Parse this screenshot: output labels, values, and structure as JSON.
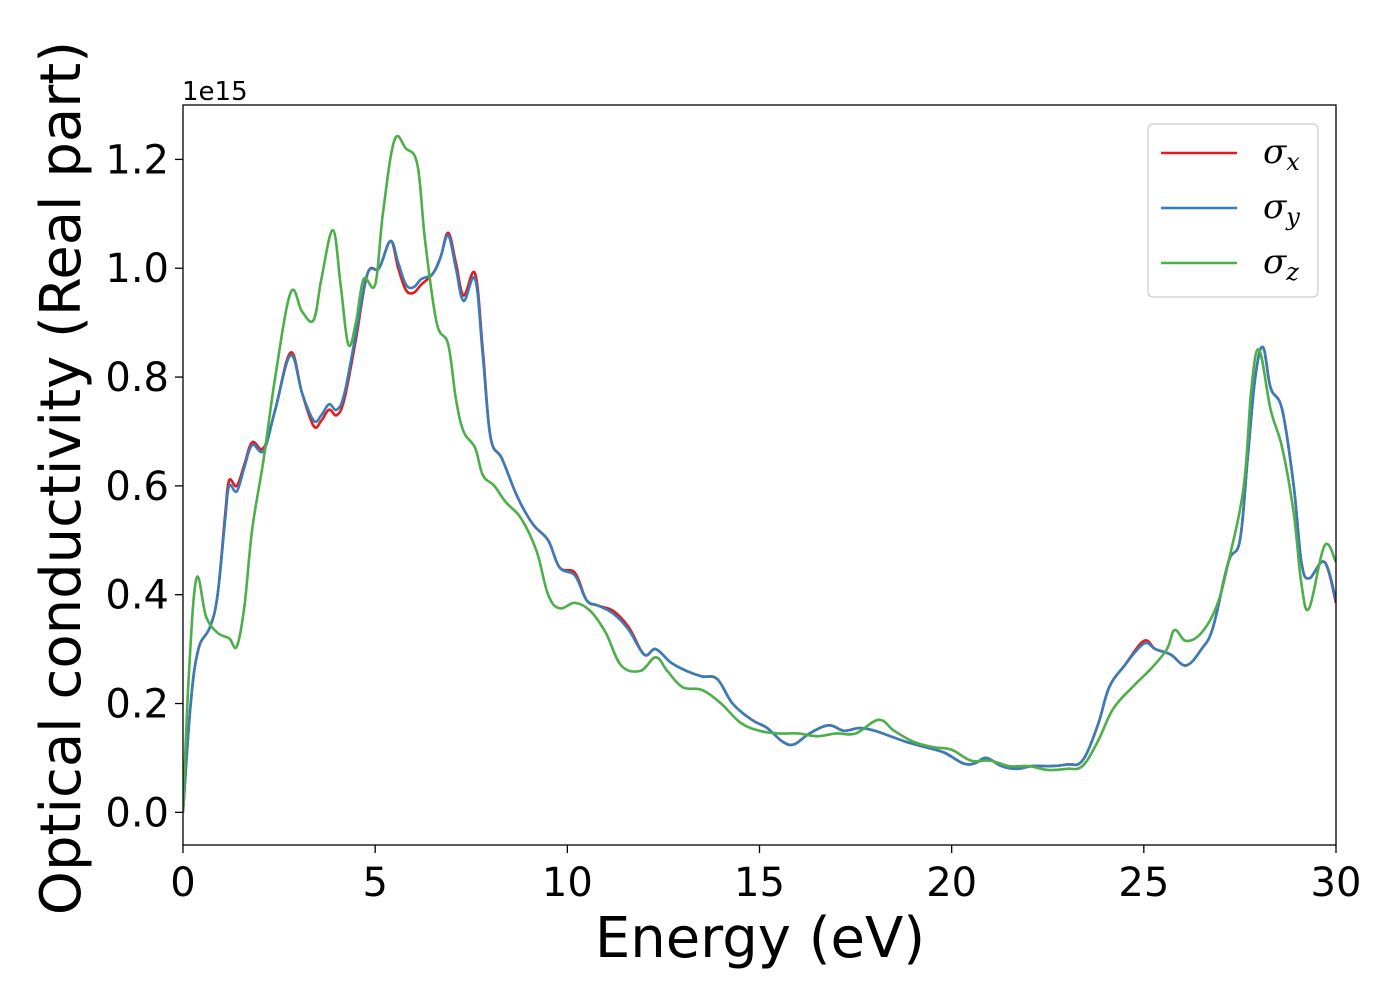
{
  "chart_data": {
    "type": "line",
    "xlabel": "Energy (eV)",
    "ylabel": "Optical conductivity (Real part)",
    "y_offset_label": "1e15",
    "xlim": [
      0,
      30
    ],
    "ylim": [
      -0.06,
      1.3
    ],
    "xticks": [
      0,
      5,
      10,
      15,
      20,
      25,
      30
    ],
    "yticks": [
      0.0,
      0.2,
      0.4,
      0.6,
      0.8,
      1.0,
      1.2
    ],
    "grid": false,
    "legend_position": "top-right",
    "series": [
      {
        "name": "σx",
        "symbol": "σ",
        "subscript": "x",
        "color": "#e41a1c",
        "points": [
          [
            0,
            0
          ],
          [
            0.2,
            0.2
          ],
          [
            0.4,
            0.3
          ],
          [
            0.7,
            0.34
          ],
          [
            0.9,
            0.4
          ],
          [
            1.1,
            0.55
          ],
          [
            1.2,
            0.61
          ],
          [
            1.4,
            0.6
          ],
          [
            1.6,
            0.64
          ],
          [
            1.8,
            0.68
          ],
          [
            2.1,
            0.67
          ],
          [
            2.4,
            0.74
          ],
          [
            2.8,
            0.845
          ],
          [
            3.1,
            0.77
          ],
          [
            3.4,
            0.71
          ],
          [
            3.6,
            0.72
          ],
          [
            3.8,
            0.74
          ],
          [
            4.0,
            0.73
          ],
          [
            4.2,
            0.76
          ],
          [
            4.5,
            0.87
          ],
          [
            4.8,
            0.99
          ],
          [
            5.1,
            1.0
          ],
          [
            5.4,
            1.05
          ],
          [
            5.6,
            1.0
          ],
          [
            5.8,
            0.96
          ],
          [
            6.0,
            0.955
          ],
          [
            6.2,
            0.97
          ],
          [
            6.5,
            0.99
          ],
          [
            6.7,
            1.02
          ],
          [
            6.9,
            1.065
          ],
          [
            7.1,
            1.01
          ],
          [
            7.3,
            0.95
          ],
          [
            7.6,
            0.99
          ],
          [
            7.8,
            0.85
          ],
          [
            8.0,
            0.69
          ],
          [
            8.3,
            0.65
          ],
          [
            8.7,
            0.58
          ],
          [
            9.1,
            0.53
          ],
          [
            9.5,
            0.5
          ],
          [
            9.8,
            0.45
          ],
          [
            10.2,
            0.44
          ],
          [
            10.5,
            0.39
          ],
          [
            10.8,
            0.38
          ],
          [
            11.2,
            0.37
          ],
          [
            11.6,
            0.34
          ],
          [
            12.0,
            0.29
          ],
          [
            12.3,
            0.3
          ],
          [
            12.7,
            0.275
          ],
          [
            13.1,
            0.26
          ],
          [
            13.5,
            0.25
          ],
          [
            13.9,
            0.245
          ],
          [
            14.3,
            0.2
          ],
          [
            14.8,
            0.17
          ],
          [
            15.2,
            0.155
          ],
          [
            15.6,
            0.13
          ],
          [
            15.9,
            0.125
          ],
          [
            16.3,
            0.145
          ],
          [
            16.8,
            0.16
          ],
          [
            17.2,
            0.15
          ],
          [
            17.6,
            0.155
          ],
          [
            18.0,
            0.15
          ],
          [
            18.4,
            0.14
          ],
          [
            18.8,
            0.13
          ],
          [
            19.3,
            0.12
          ],
          [
            19.8,
            0.11
          ],
          [
            20.3,
            0.09
          ],
          [
            20.6,
            0.09
          ],
          [
            20.9,
            0.1
          ],
          [
            21.3,
            0.085
          ],
          [
            21.7,
            0.08
          ],
          [
            22.1,
            0.085
          ],
          [
            22.6,
            0.085
          ],
          [
            23.0,
            0.088
          ],
          [
            23.4,
            0.095
          ],
          [
            23.8,
            0.16
          ],
          [
            24.1,
            0.23
          ],
          [
            24.5,
            0.27
          ],
          [
            25.0,
            0.315
          ],
          [
            25.3,
            0.3
          ],
          [
            25.7,
            0.29
          ],
          [
            26.1,
            0.27
          ],
          [
            26.5,
            0.3
          ],
          [
            26.8,
            0.34
          ],
          [
            27.2,
            0.46
          ],
          [
            27.5,
            0.5
          ],
          [
            27.7,
            0.65
          ],
          [
            27.9,
            0.8
          ],
          [
            28.1,
            0.855
          ],
          [
            28.3,
            0.78
          ],
          [
            28.6,
            0.74
          ],
          [
            28.9,
            0.6
          ],
          [
            29.1,
            0.46
          ],
          [
            29.3,
            0.43
          ],
          [
            29.7,
            0.46
          ],
          [
            30.0,
            0.385
          ]
        ]
      },
      {
        "name": "σy",
        "symbol": "σ",
        "subscript": "y",
        "color": "#377eb8",
        "points": [
          [
            0,
            0
          ],
          [
            0.2,
            0.2
          ],
          [
            0.4,
            0.3
          ],
          [
            0.7,
            0.34
          ],
          [
            0.9,
            0.4
          ],
          [
            1.1,
            0.54
          ],
          [
            1.2,
            0.6
          ],
          [
            1.4,
            0.59
          ],
          [
            1.6,
            0.635
          ],
          [
            1.8,
            0.675
          ],
          [
            2.1,
            0.665
          ],
          [
            2.4,
            0.74
          ],
          [
            2.8,
            0.84
          ],
          [
            3.1,
            0.77
          ],
          [
            3.4,
            0.72
          ],
          [
            3.6,
            0.73
          ],
          [
            3.8,
            0.75
          ],
          [
            4.0,
            0.74
          ],
          [
            4.2,
            0.77
          ],
          [
            4.5,
            0.88
          ],
          [
            4.8,
            0.99
          ],
          [
            5.1,
            1.0
          ],
          [
            5.4,
            1.05
          ],
          [
            5.6,
            1.01
          ],
          [
            5.8,
            0.97
          ],
          [
            6.0,
            0.965
          ],
          [
            6.2,
            0.98
          ],
          [
            6.5,
            0.99
          ],
          [
            6.7,
            1.02
          ],
          [
            6.9,
            1.06
          ],
          [
            7.1,
            1.0
          ],
          [
            7.3,
            0.94
          ],
          [
            7.6,
            0.98
          ],
          [
            7.8,
            0.84
          ],
          [
            8.0,
            0.69
          ],
          [
            8.3,
            0.65
          ],
          [
            8.7,
            0.58
          ],
          [
            9.1,
            0.53
          ],
          [
            9.5,
            0.5
          ],
          [
            9.8,
            0.45
          ],
          [
            10.2,
            0.435
          ],
          [
            10.5,
            0.39
          ],
          [
            10.8,
            0.38
          ],
          [
            11.2,
            0.365
          ],
          [
            11.6,
            0.335
          ],
          [
            12.0,
            0.29
          ],
          [
            12.3,
            0.3
          ],
          [
            12.7,
            0.275
          ],
          [
            13.1,
            0.26
          ],
          [
            13.5,
            0.25
          ],
          [
            13.9,
            0.245
          ],
          [
            14.3,
            0.2
          ],
          [
            14.8,
            0.17
          ],
          [
            15.2,
            0.155
          ],
          [
            15.6,
            0.13
          ],
          [
            15.9,
            0.125
          ],
          [
            16.3,
            0.145
          ],
          [
            16.8,
            0.16
          ],
          [
            17.2,
            0.15
          ],
          [
            17.6,
            0.155
          ],
          [
            18.0,
            0.15
          ],
          [
            18.4,
            0.14
          ],
          [
            18.8,
            0.13
          ],
          [
            19.3,
            0.12
          ],
          [
            19.8,
            0.11
          ],
          [
            20.3,
            0.09
          ],
          [
            20.6,
            0.09
          ],
          [
            20.9,
            0.1
          ],
          [
            21.3,
            0.085
          ],
          [
            21.7,
            0.08
          ],
          [
            22.1,
            0.085
          ],
          [
            22.6,
            0.085
          ],
          [
            23.0,
            0.088
          ],
          [
            23.4,
            0.095
          ],
          [
            23.8,
            0.16
          ],
          [
            24.1,
            0.23
          ],
          [
            24.5,
            0.27
          ],
          [
            25.0,
            0.31
          ],
          [
            25.3,
            0.3
          ],
          [
            25.7,
            0.29
          ],
          [
            26.1,
            0.27
          ],
          [
            26.5,
            0.3
          ],
          [
            26.8,
            0.34
          ],
          [
            27.2,
            0.46
          ],
          [
            27.5,
            0.5
          ],
          [
            27.7,
            0.65
          ],
          [
            27.9,
            0.8
          ],
          [
            28.1,
            0.855
          ],
          [
            28.3,
            0.78
          ],
          [
            28.6,
            0.74
          ],
          [
            28.9,
            0.6
          ],
          [
            29.1,
            0.46
          ],
          [
            29.3,
            0.43
          ],
          [
            29.7,
            0.46
          ],
          [
            30.0,
            0.39
          ]
        ]
      },
      {
        "name": "σz",
        "symbol": "σ",
        "subscript": "z",
        "color": "#4daf4a",
        "points": [
          [
            0,
            0
          ],
          [
            0.15,
            0.25
          ],
          [
            0.35,
            0.43
          ],
          [
            0.6,
            0.36
          ],
          [
            0.9,
            0.33
          ],
          [
            1.2,
            0.32
          ],
          [
            1.4,
            0.305
          ],
          [
            1.6,
            0.38
          ],
          [
            1.8,
            0.52
          ],
          [
            2.1,
            0.65
          ],
          [
            2.4,
            0.8
          ],
          [
            2.8,
            0.955
          ],
          [
            3.1,
            0.92
          ],
          [
            3.4,
            0.905
          ],
          [
            3.6,
            0.98
          ],
          [
            3.9,
            1.07
          ],
          [
            4.1,
            0.97
          ],
          [
            4.3,
            0.86
          ],
          [
            4.5,
            0.9
          ],
          [
            4.7,
            0.98
          ],
          [
            5.0,
            0.97
          ],
          [
            5.2,
            1.1
          ],
          [
            5.5,
            1.235
          ],
          [
            5.8,
            1.22
          ],
          [
            6.1,
            1.19
          ],
          [
            6.3,
            1.05
          ],
          [
            6.6,
            0.9
          ],
          [
            6.9,
            0.86
          ],
          [
            7.1,
            0.76
          ],
          [
            7.3,
            0.7
          ],
          [
            7.6,
            0.67
          ],
          [
            7.8,
            0.62
          ],
          [
            8.1,
            0.6
          ],
          [
            8.4,
            0.57
          ],
          [
            8.8,
            0.54
          ],
          [
            9.2,
            0.48
          ],
          [
            9.5,
            0.4
          ],
          [
            9.8,
            0.375
          ],
          [
            10.2,
            0.385
          ],
          [
            10.6,
            0.37
          ],
          [
            11.0,
            0.33
          ],
          [
            11.4,
            0.27
          ],
          [
            11.9,
            0.26
          ],
          [
            12.3,
            0.285
          ],
          [
            12.6,
            0.26
          ],
          [
            13.0,
            0.23
          ],
          [
            13.5,
            0.225
          ],
          [
            14.0,
            0.2
          ],
          [
            14.5,
            0.165
          ],
          [
            15.0,
            0.15
          ],
          [
            15.5,
            0.145
          ],
          [
            16.0,
            0.145
          ],
          [
            16.5,
            0.14
          ],
          [
            17.0,
            0.145
          ],
          [
            17.5,
            0.145
          ],
          [
            18.1,
            0.17
          ],
          [
            18.5,
            0.15
          ],
          [
            19.0,
            0.13
          ],
          [
            19.5,
            0.12
          ],
          [
            20.0,
            0.115
          ],
          [
            20.5,
            0.095
          ],
          [
            21.0,
            0.095
          ],
          [
            21.5,
            0.085
          ],
          [
            22.0,
            0.085
          ],
          [
            22.5,
            0.078
          ],
          [
            23.0,
            0.08
          ],
          [
            23.4,
            0.085
          ],
          [
            23.8,
            0.13
          ],
          [
            24.2,
            0.19
          ],
          [
            24.7,
            0.23
          ],
          [
            25.2,
            0.265
          ],
          [
            25.6,
            0.3
          ],
          [
            25.8,
            0.335
          ],
          [
            26.1,
            0.315
          ],
          [
            26.5,
            0.33
          ],
          [
            26.9,
            0.38
          ],
          [
            27.2,
            0.46
          ],
          [
            27.6,
            0.6
          ],
          [
            27.8,
            0.78
          ],
          [
            28.0,
            0.85
          ],
          [
            28.3,
            0.74
          ],
          [
            28.6,
            0.67
          ],
          [
            28.9,
            0.55
          ],
          [
            29.1,
            0.42
          ],
          [
            29.3,
            0.375
          ],
          [
            29.7,
            0.49
          ],
          [
            30.0,
            0.46
          ]
        ]
      }
    ]
  }
}
